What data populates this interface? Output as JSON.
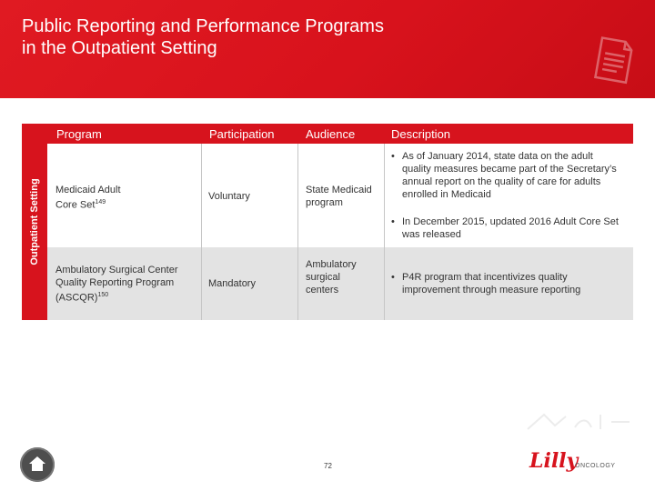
{
  "slide": {
    "title_line1": "Public Reporting and Performance Programs",
    "title_line2": "in the Outpatient Setting",
    "side_label": "Outpatient Setting",
    "page_number": "72"
  },
  "table": {
    "headers": {
      "program": "Program",
      "participation": "Participation",
      "audience": "Audience",
      "description": "Description"
    },
    "rows": [
      {
        "program_line1": "Medicaid Adult",
        "program_line2": "Core Set",
        "program_ref": "149",
        "participation": "Voluntary",
        "audience_line1": "State Medicaid",
        "audience_line2": "program",
        "description": [
          "As of January 2014, state data on the adult quality measures became part of the Secretary’s annual report on the quality of care for adults enrolled in Medicaid",
          "In December 2015, updated 2016 Adult Core Set was released"
        ]
      },
      {
        "program_line1": "Ambulatory Surgical Center",
        "program_line2": "Quality Reporting Program",
        "program_line3": "(ASCQR)",
        "program_ref": "150",
        "participation": "Mandatory",
        "audience_line1": "Ambulatory",
        "audience_line2": "surgical",
        "audience_line3": "centers",
        "description": [
          "P4R program that incentivizes quality improvement through measure reporting"
        ]
      }
    ]
  },
  "footer": {
    "logo_script": "Lilly",
    "logo_sub": "ONCOLOGY"
  },
  "colors": {
    "brand_red": "#d7131d",
    "row_gray": "#e3e3e3",
    "home_button": "#4e4e4e"
  },
  "icons": [
    "document-icon",
    "home-icon",
    "watermark-icon"
  ]
}
